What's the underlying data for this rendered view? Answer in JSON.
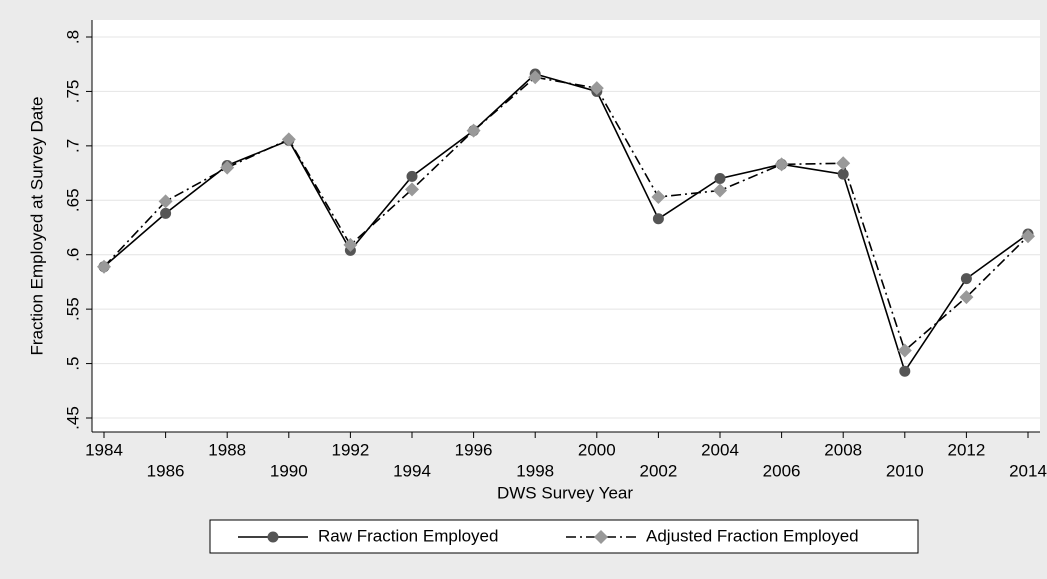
{
  "chart_data": {
    "type": "line",
    "xlabel": "DWS Survey Year",
    "ylabel": "Fraction Employed at Survey Date",
    "x": [
      1984,
      1986,
      1988,
      1990,
      1992,
      1994,
      1996,
      1998,
      2000,
      2002,
      2004,
      2006,
      2008,
      2010,
      2012,
      2014
    ],
    "series": [
      {
        "name": "Raw Fraction Employed",
        "color": "#555555",
        "line_color": "#000000",
        "marker": "circle",
        "line_style": "solid",
        "values": [
          0.589,
          0.638,
          0.682,
          0.705,
          0.604,
          0.672,
          0.714,
          0.766,
          0.75,
          0.633,
          0.67,
          0.683,
          0.674,
          0.493,
          0.578,
          0.619
        ]
      },
      {
        "name": "Adjusted Fraction Employed",
        "color": "#999999",
        "line_color": "#000000",
        "marker": "diamond",
        "line_style": "dashdot",
        "values": [
          0.589,
          0.649,
          0.68,
          0.706,
          0.609,
          0.66,
          0.714,
          0.763,
          0.753,
          0.653,
          0.659,
          0.683,
          0.684,
          0.512,
          0.561,
          0.617
        ]
      }
    ],
    "xlim": [
      1984,
      2014
    ],
    "xticks": [
      1984,
      1986,
      1988,
      1990,
      1992,
      1994,
      1996,
      1998,
      2000,
      2002,
      2004,
      2006,
      2008,
      2010,
      2012,
      2014
    ],
    "ylim": [
      0.45,
      0.8
    ],
    "yticks": [
      {
        "value": 0.45,
        "label": ".45"
      },
      {
        "value": 0.5,
        "label": ".5"
      },
      {
        "value": 0.55,
        "label": ".55"
      },
      {
        "value": 0.6,
        "label": ".6"
      },
      {
        "value": 0.65,
        "label": ".65"
      },
      {
        "value": 0.7,
        "label": ".7"
      },
      {
        "value": 0.75,
        "label": ".75"
      },
      {
        "value": 0.8,
        "label": ".8"
      }
    ],
    "grid": true,
    "legend": "bottom"
  }
}
